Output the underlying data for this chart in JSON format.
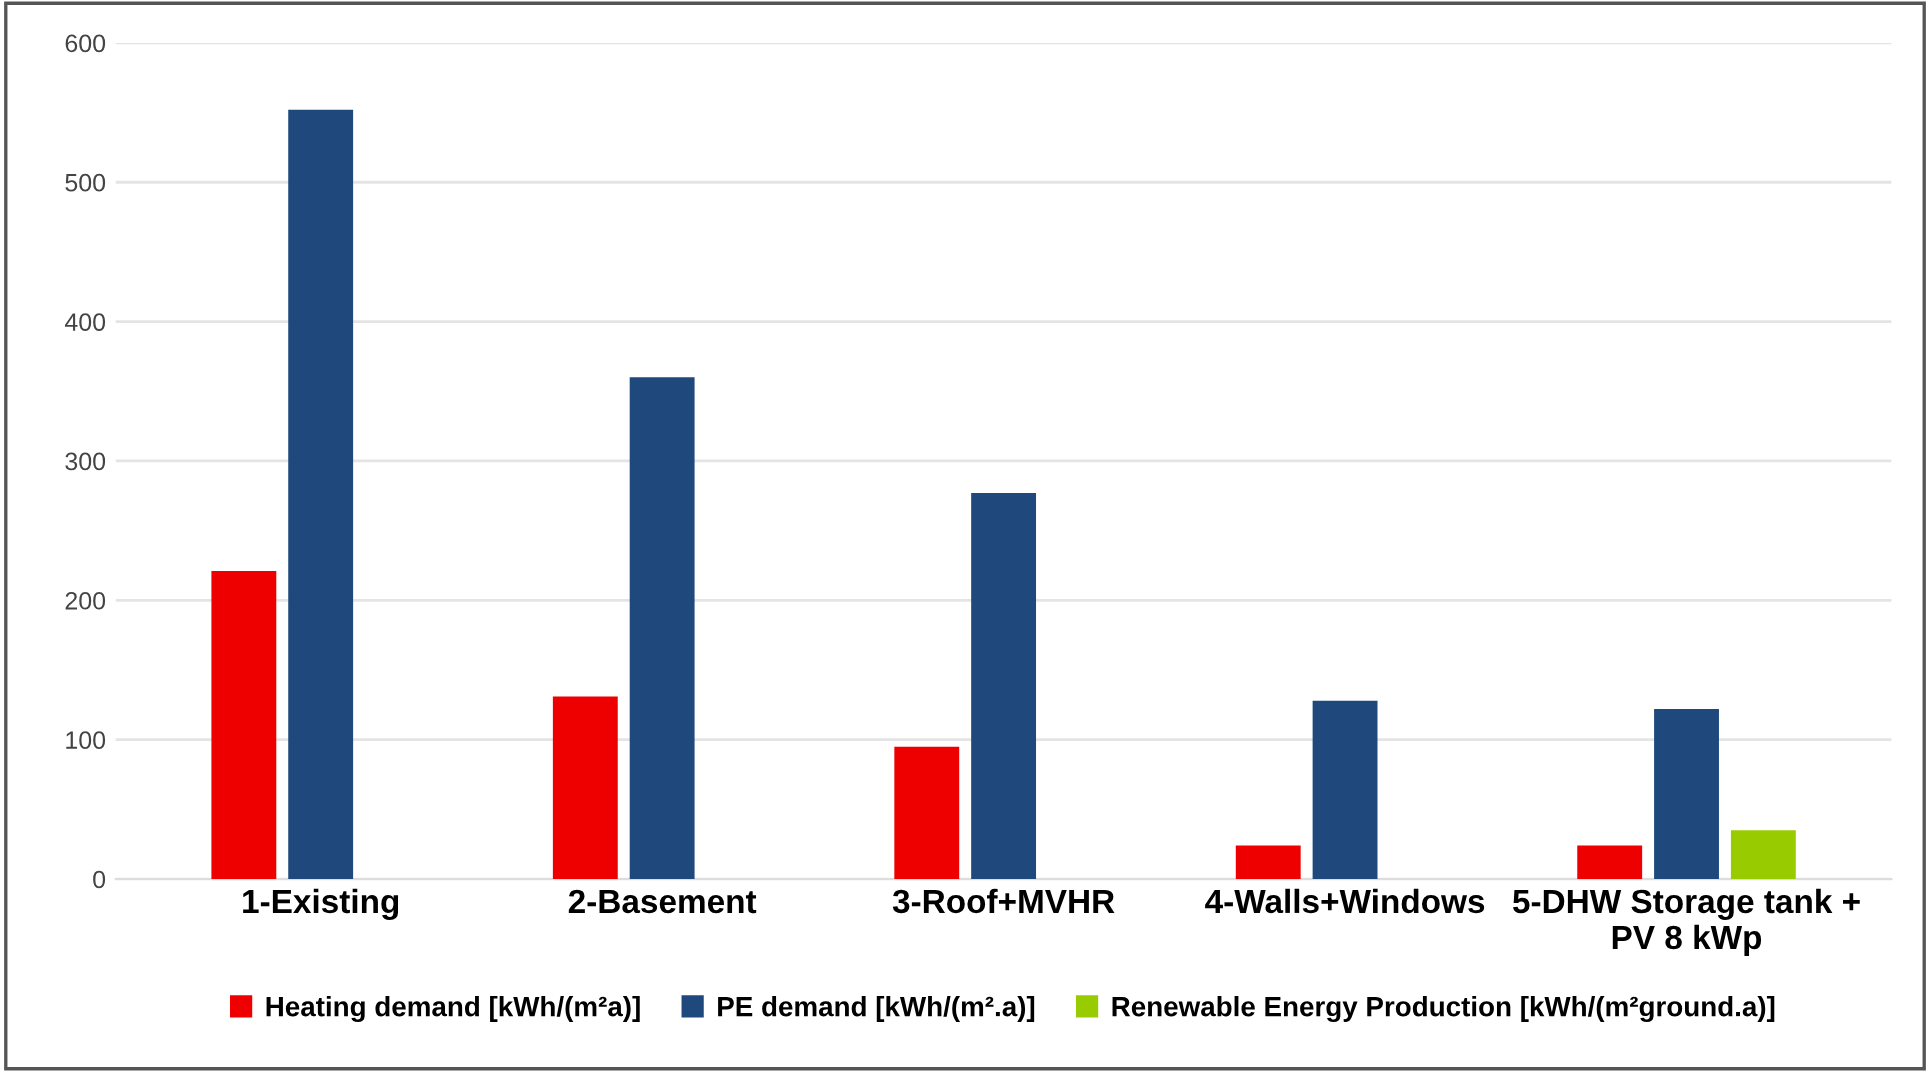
{
  "chart_data": {
    "type": "bar",
    "categories": [
      "1-Existing",
      "2-Basement",
      "3-Roof+MVHR",
      "4-Walls+Windows",
      "5-DHW Storage tank +\nPV 8 kWp"
    ],
    "series": [
      {
        "name": "Heating demand [kWh/(m²a)]",
        "color": "#ee0000",
        "values": [
          221,
          131,
          95,
          24,
          24
        ]
      },
      {
        "name": "PE demand [kWh/(m².a)]",
        "color": "#1f497d",
        "values": [
          552,
          360,
          277,
          128,
          122
        ]
      },
      {
        "name": "Renewable Energy Production [kWh/(m²ground.a)]",
        "color": "#99cc00",
        "values": [
          null,
          null,
          null,
          null,
          35
        ]
      }
    ],
    "ylim": [
      0,
      600
    ],
    "yticks": [
      0,
      100,
      200,
      300,
      400,
      500,
      600
    ],
    "grid": "y",
    "legend": "bottom"
  }
}
